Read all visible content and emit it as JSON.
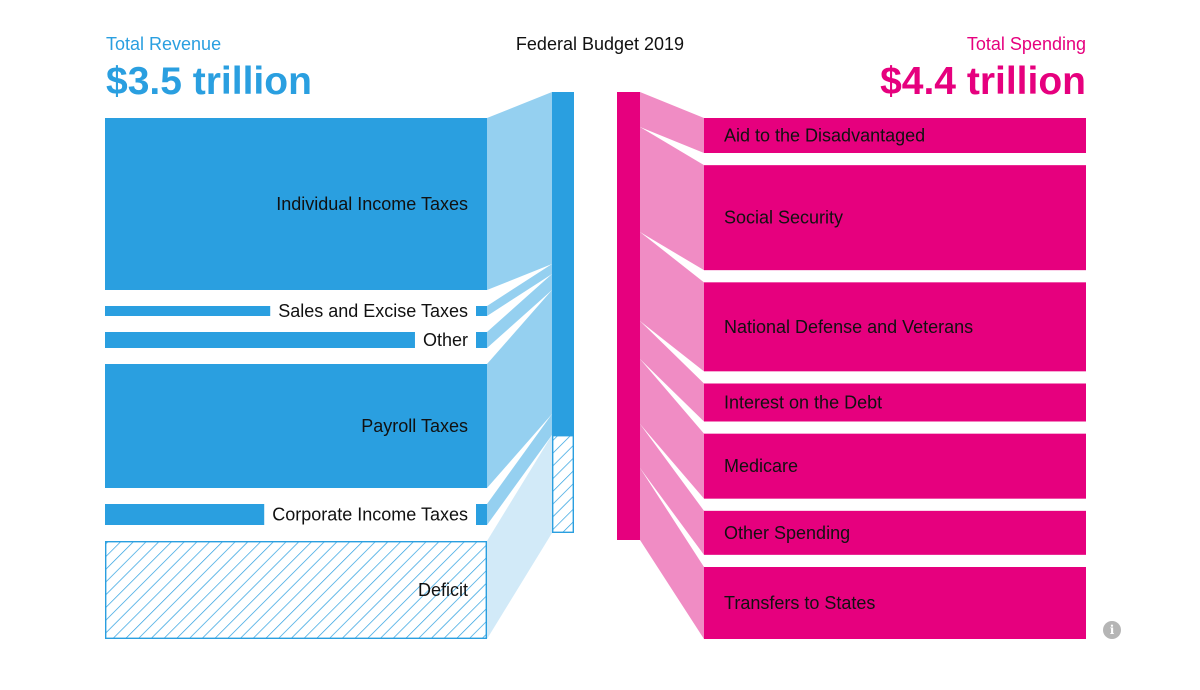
{
  "chart_data": {
    "type": "sankey",
    "title": "Federal Budget 2019",
    "units": "trillion USD",
    "revenue": {
      "label": "Total Revenue",
      "total_text": "$3.5 trillion",
      "total": 3.5,
      "color": "#2a9fe0",
      "flow_color": "#95d0f0",
      "items": [
        {
          "name": "Individual Income Taxes",
          "value": 1.72
        },
        {
          "name": "Sales and Excise Taxes",
          "value": 0.1
        },
        {
          "name": "Other",
          "value": 0.16
        },
        {
          "name": "Payroll Taxes",
          "value": 1.24
        },
        {
          "name": "Corporate Income Taxes",
          "value": 0.21
        }
      ]
    },
    "deficit": {
      "name": "Deficit",
      "value": 0.98,
      "color": "#2a9fe0",
      "flow_color": "#d2eaf8"
    },
    "spending": {
      "label": "Total Spending",
      "total_text": "$4.4 trillion",
      "total": 4.4,
      "color": "#e6007e",
      "flow_color": "#f08cc4",
      "items": [
        {
          "name": "Aid to the Disadvantaged",
          "value": 0.35
        },
        {
          "name": "Social Security",
          "value": 1.05
        },
        {
          "name": "National Defense and Veterans",
          "value": 0.89
        },
        {
          "name": "Interest on the Debt",
          "value": 0.38
        },
        {
          "name": "Medicare",
          "value": 0.65
        },
        {
          "name": "Other Spending",
          "value": 0.44
        },
        {
          "name": "Transfers to States",
          "value": 0.72
        }
      ]
    }
  },
  "info": {
    "icon": "info-icon",
    "glyph": "i"
  }
}
